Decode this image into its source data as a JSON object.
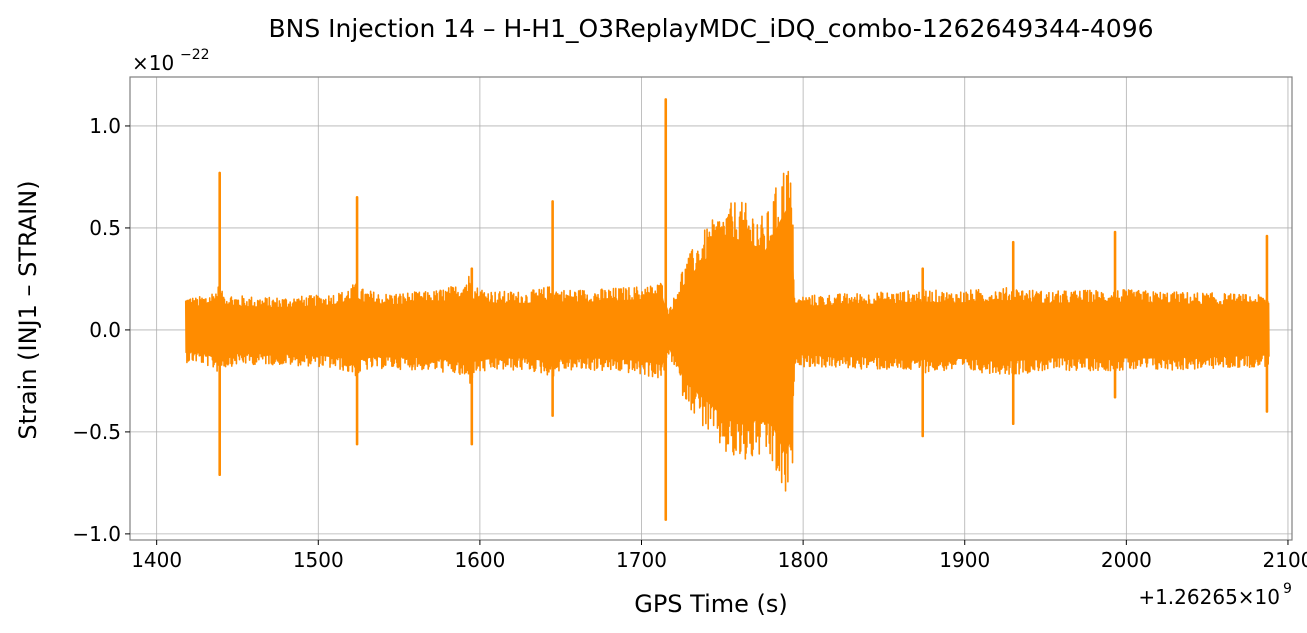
{
  "chart_data": {
    "type": "line",
    "title": "BNS Injection 14 – H-H1_O3ReplayMDC_iDQ_combo-1262649344-4096",
    "xlabel": "GPS Time (s)",
    "ylabel": "Strain (INJ1 – STRAIN)",
    "x_offset_label": "+1.26265×10",
    "x_offset_exponent": "9",
    "y_scale_label": "×10",
    "y_scale_exponent": "−22",
    "xlim": [
      1383.5,
      2102.5
    ],
    "ylim": [
      -1.03,
      1.24
    ],
    "x_ticks": [
      1400,
      1500,
      1600,
      1700,
      1800,
      1900,
      2000,
      2100
    ],
    "x_tick_labels": [
      "1400",
      "1500",
      "1600",
      "1700",
      "1800",
      "1900",
      "2000",
      "2100"
    ],
    "y_ticks": [
      -1.0,
      -0.5,
      0.0,
      0.5,
      1.0
    ],
    "y_tick_labels": [
      "−1.0",
      "−0.5",
      "0.0",
      "0.5",
      "1.0"
    ],
    "grid": true,
    "line_color": "#ff8c00",
    "series": [
      {
        "x_range": [
          1418,
          2088
        ],
        "envelope_upper": [
          [
            1418,
            0.17
          ],
          [
            1425,
            0.16
          ],
          [
            1432,
            0.18
          ],
          [
            1436,
            0.2
          ],
          [
            1438,
            0.22
          ],
          [
            1440,
            0.19
          ],
          [
            1450,
            0.17
          ],
          [
            1470,
            0.16
          ],
          [
            1500,
            0.17
          ],
          [
            1515,
            0.19
          ],
          [
            1520,
            0.22
          ],
          [
            1524,
            0.23
          ],
          [
            1528,
            0.2
          ],
          [
            1540,
            0.18
          ],
          [
            1570,
            0.19
          ],
          [
            1585,
            0.22
          ],
          [
            1592,
            0.27
          ],
          [
            1594,
            0.28
          ],
          [
            1596,
            0.22
          ],
          [
            1610,
            0.19
          ],
          [
            1630,
            0.19
          ],
          [
            1640,
            0.21
          ],
          [
            1645,
            0.22
          ],
          [
            1650,
            0.2
          ],
          [
            1670,
            0.2
          ],
          [
            1690,
            0.21
          ],
          [
            1705,
            0.22
          ],
          [
            1713,
            0.24
          ],
          [
            1716,
            0.1
          ],
          [
            1720,
            0.16
          ],
          [
            1725,
            0.3
          ],
          [
            1735,
            0.45
          ],
          [
            1745,
            0.55
          ],
          [
            1752,
            0.6
          ],
          [
            1758,
            0.64
          ],
          [
            1765,
            0.62
          ],
          [
            1772,
            0.58
          ],
          [
            1776,
            0.55
          ],
          [
            1780,
            0.62
          ],
          [
            1785,
            0.75
          ],
          [
            1790,
            0.85
          ],
          [
            1793,
            0.72
          ],
          [
            1795,
            0.15
          ],
          [
            1800,
            0.17
          ],
          [
            1830,
            0.18
          ],
          [
            1860,
            0.19
          ],
          [
            1875,
            0.2
          ],
          [
            1890,
            0.19
          ],
          [
            1930,
            0.21
          ],
          [
            1950,
            0.19
          ],
          [
            1992,
            0.2
          ],
          [
            2020,
            0.19
          ],
          [
            2060,
            0.18
          ],
          [
            2086,
            0.17
          ],
          [
            2088,
            0.16
          ]
        ],
        "envelope_lower": [
          [
            1418,
            -0.16
          ],
          [
            1425,
            -0.16
          ],
          [
            1432,
            -0.18
          ],
          [
            1436,
            -0.2
          ],
          [
            1438,
            -0.21
          ],
          [
            1440,
            -0.19
          ],
          [
            1450,
            -0.17
          ],
          [
            1470,
            -0.17
          ],
          [
            1500,
            -0.18
          ],
          [
            1515,
            -0.2
          ],
          [
            1520,
            -0.22
          ],
          [
            1524,
            -0.23
          ],
          [
            1528,
            -0.2
          ],
          [
            1540,
            -0.19
          ],
          [
            1570,
            -0.2
          ],
          [
            1585,
            -0.22
          ],
          [
            1592,
            -0.26
          ],
          [
            1594,
            -0.27
          ],
          [
            1596,
            -0.22
          ],
          [
            1610,
            -0.2
          ],
          [
            1630,
            -0.2
          ],
          [
            1640,
            -0.22
          ],
          [
            1645,
            -0.23
          ],
          [
            1650,
            -0.2
          ],
          [
            1670,
            -0.2
          ],
          [
            1690,
            -0.21
          ],
          [
            1705,
            -0.23
          ],
          [
            1713,
            -0.25
          ],
          [
            1716,
            -0.12
          ],
          [
            1720,
            -0.18
          ],
          [
            1725,
            -0.32
          ],
          [
            1735,
            -0.45
          ],
          [
            1745,
            -0.55
          ],
          [
            1752,
            -0.62
          ],
          [
            1758,
            -0.66
          ],
          [
            1765,
            -0.66
          ],
          [
            1772,
            -0.63
          ],
          [
            1778,
            -0.64
          ],
          [
            1782,
            -0.7
          ],
          [
            1786,
            -0.8
          ],
          [
            1790,
            -0.85
          ],
          [
            1793,
            -0.75
          ],
          [
            1795,
            -0.16
          ],
          [
            1800,
            -0.18
          ],
          [
            1830,
            -0.19
          ],
          [
            1860,
            -0.2
          ],
          [
            1875,
            -0.21
          ],
          [
            1890,
            -0.2
          ],
          [
            1930,
            -0.22
          ],
          [
            1950,
            -0.2
          ],
          [
            1992,
            -0.2
          ],
          [
            2020,
            -0.2
          ],
          [
            2060,
            -0.19
          ],
          [
            2086,
            -0.18
          ],
          [
            2088,
            -0.17
          ]
        ],
        "glitches": [
          {
            "x": 1439,
            "high": 0.77,
            "low": -0.71
          },
          {
            "x": 1524,
            "high": 0.65,
            "low": -0.56
          },
          {
            "x": 1595,
            "high": 0.3,
            "low": -0.56
          },
          {
            "x": 1645,
            "high": 0.63,
            "low": -0.42
          },
          {
            "x": 1715,
            "high": 1.13,
            "low": -0.93
          },
          {
            "x": 1874,
            "high": 0.3,
            "low": -0.52
          },
          {
            "x": 1930,
            "high": 0.43,
            "low": -0.46
          },
          {
            "x": 1993,
            "high": 0.48,
            "low": -0.33
          },
          {
            "x": 2087,
            "high": 0.46,
            "low": -0.4
          }
        ]
      }
    ]
  }
}
